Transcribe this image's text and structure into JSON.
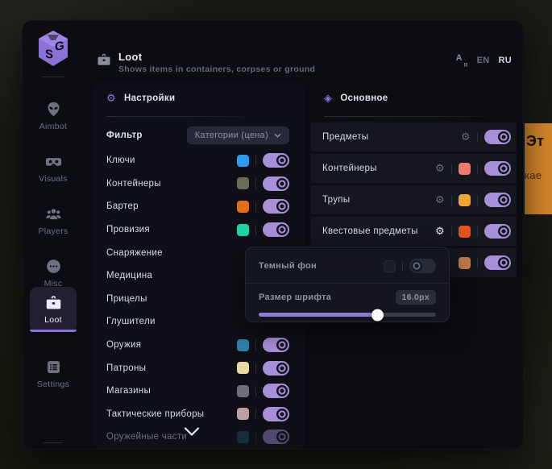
{
  "background": {
    "banner": {
      "line1": "Эт",
      "line2": "кае",
      "color": "#d8892b"
    }
  },
  "sidebar": {
    "logo_s": "S",
    "logo_g": "G",
    "items": [
      {
        "label": "Aimbot",
        "icon": "alien-icon",
        "active": false
      },
      {
        "label": "Visuals",
        "icon": "vr-goggles-icon",
        "active": false
      },
      {
        "label": "Players",
        "icon": "players-icon",
        "active": false
      },
      {
        "label": "Misc",
        "icon": "chat-dots-icon",
        "active": false
      },
      {
        "label": "Loot",
        "icon": "briefcase-icon",
        "active": true
      },
      {
        "label": "Settings",
        "icon": "list-icon",
        "active": false
      }
    ]
  },
  "header": {
    "title": "Loot",
    "subtitle": "Shows items in containers, corpses or ground",
    "translate_icon_primary": "A",
    "translate_icon_secondary": "я",
    "lang_en": "EN",
    "lang_ru": "RU"
  },
  "left_panel": {
    "title": "Настройки",
    "filter_label": "Фильтр",
    "filter_value": "Категории (цена)",
    "items": [
      {
        "label": "Ключи",
        "color": "#2f9bef",
        "enabled": true
      },
      {
        "label": "Контейнеры",
        "color": "#676d58",
        "enabled": true
      },
      {
        "label": "Бартер",
        "color": "#df6f1c",
        "enabled": true
      },
      {
        "label": "Провизия",
        "color": "#1fd3a5",
        "enabled": true
      },
      {
        "label": "Снаряжение"
      },
      {
        "label": "Медицина"
      },
      {
        "label": "Прицелы"
      },
      {
        "label": "Глушители"
      },
      {
        "label": "Оружия",
        "color": "#2f81a8",
        "enabled": true
      },
      {
        "label": "Патроны",
        "color": "#ead7a4",
        "enabled": true
      },
      {
        "label": "Магазины",
        "color": "#6f6f78",
        "enabled": true
      },
      {
        "label": "Тактические приборы",
        "color": "#bd9ea4",
        "enabled": true
      },
      {
        "label": "Оружейные части",
        "color": "#25506a",
        "enabled": true,
        "faded": true
      }
    ]
  },
  "right_panel": {
    "title": "Основное",
    "items": [
      {
        "label": "Предметы",
        "enabled": true
      },
      {
        "label": "Контейнеры",
        "color": "#f0786c",
        "enabled": true
      },
      {
        "label": "Трупы",
        "color": "#f3a52d",
        "enabled": true
      },
      {
        "label": "Квестовые предметы",
        "color": "#e4531c",
        "enabled": true
      },
      {
        "label": "",
        "color": "#c1794a",
        "enabled": true
      }
    ]
  },
  "popup": {
    "dark_bg_label": "Темный фон",
    "dark_bg_enabled": false,
    "font_size_label": "Размер шрифта",
    "font_size_value": "16.0px",
    "slider_percent": 67
  },
  "colors": {
    "accent": "#8b72d8",
    "toggle_on": "#a78fda",
    "window_bg": "#0c0d13",
    "row_bg": "#15161e"
  }
}
